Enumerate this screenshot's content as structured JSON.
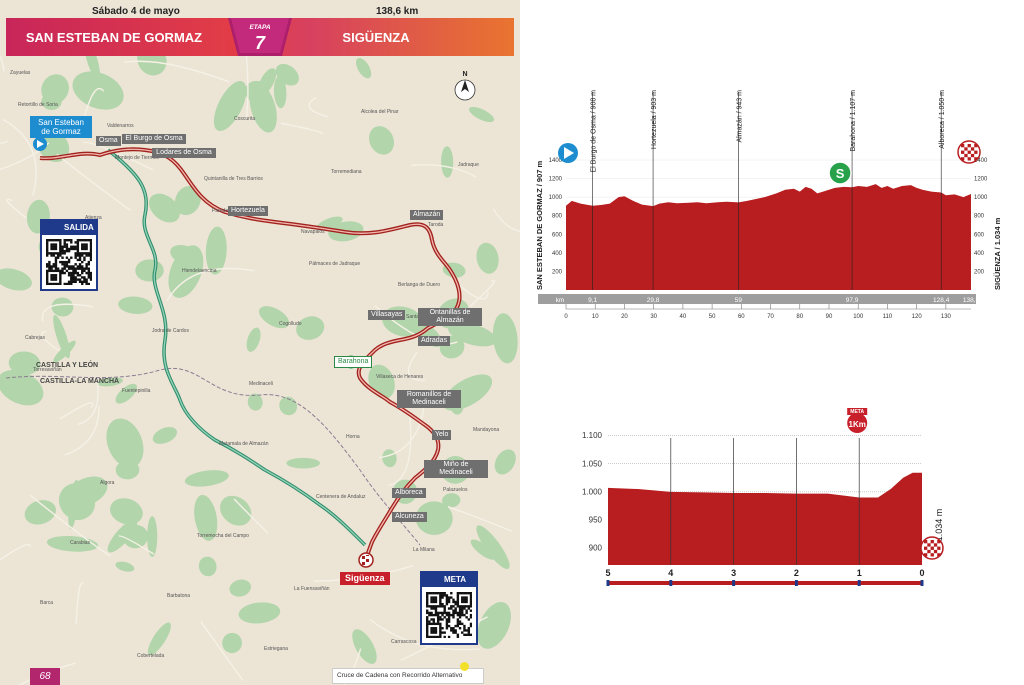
{
  "header": {
    "date": "Sábado 4 de mayo",
    "distance": "138,6 km",
    "start_city": "SAN ESTEBAN DE GORMAZ",
    "stage_label": "ETAPA",
    "stage_number": "7",
    "end_city": "SIGÜENZA"
  },
  "map": {
    "start_label": "San Esteban de Gormaz",
    "finish_label": "Sigüenza",
    "sprint_label": "Barahona",
    "salida_label": "SALIDA",
    "meta_label": "META",
    "page_number": "68",
    "legend": "Cruce de Cadena con Recorrido Alternativo",
    "route_tags": [
      {
        "name": "Osma"
      },
      {
        "name": "El Burgo de Osma"
      },
      {
        "name": "Lodares de Osma"
      },
      {
        "name": "Hortezuela"
      },
      {
        "name": "Almazán"
      },
      {
        "name": "Villasayas"
      },
      {
        "name": "Ontanillas de Almazán"
      },
      {
        "name": "Adradas"
      },
      {
        "name": "Romanillos de Medinaceli"
      },
      {
        "name": "Yelo"
      },
      {
        "name": "Miño de Medinaceli"
      },
      {
        "name": "Alboreca"
      },
      {
        "name": "Alcuneza"
      }
    ],
    "regions": [
      "CASTILLA Y LEÓN",
      "CASTILLA-LA MANCHA"
    ],
    "towns": [
      "Zayuelas",
      "Valdenarros",
      "Quintanilla de Tres Barrios",
      "Navapalos",
      "Berlanga de Duero",
      "Cabrejas",
      "Fuentepinilla",
      "Matamala de Almazán",
      "Centenera de Andaluz",
      "La Milana",
      "Barca",
      "Cobertelada",
      "Coscurita",
      "Torremediana",
      "Taroda",
      "Pinilla del Olmo",
      "Jodra de Cardos",
      "Medinaceli",
      "Horna",
      "Palazuelos",
      "Carabias",
      "Barbatona",
      "Estriegana",
      "Alcolea del Pinar",
      "Jadraque",
      "Atienza",
      "Hiendelaencina",
      "Cogolludo",
      "Villaseca de Henares",
      "Mandayona",
      "Algora",
      "Torremocha del Campo",
      "La Fuensaviñán",
      "Carrascosa",
      "Retortillo de Soria",
      "Montejo de Tiermes",
      "Paredes de Sigüenza",
      "Pálmaces de Jadraque",
      "Santamera",
      "Torresaviñán"
    ]
  },
  "profile": {
    "start_vertical": "SAN ESTEBAN DE GORMAZ / 907 m",
    "end_vertical": "SIGÜENZA / 1.034 m",
    "km_label": "km",
    "y_ticks": [
      "1400",
      "1200",
      "1000",
      "800",
      "600",
      "400",
      "200"
    ],
    "y_ticks_right": [
      "1400",
      "1200",
      "1000",
      "800",
      "600",
      "400",
      "200"
    ],
    "x_ticks": [
      "0",
      "10",
      "20",
      "30",
      "40",
      "50",
      "60",
      "70",
      "80",
      "90",
      "100",
      "110",
      "120",
      "130"
    ],
    "points": [
      {
        "label": "El Burgo de Osma / 908 m",
        "km_label": "9,1",
        "km": 9.1
      },
      {
        "label": "Hortezuela / 903 m",
        "km_label": "29,8",
        "km": 29.8
      },
      {
        "label": "Almazán / 943 m",
        "km_label": "59",
        "km": 59
      },
      {
        "label": "Barahona / 1.107 m",
        "km_label": "97,9",
        "km": 97.9
      },
      {
        "label": "Alboreca / 1.050 m",
        "km_label": "128,4",
        "km": 128.4
      },
      {
        "label": "",
        "km_label": "138,6",
        "km": 138.6
      }
    ],
    "sprint_icon_text": "S"
  },
  "final_km": {
    "y_ticks": [
      "1.100",
      "1.050",
      "1.000",
      "950",
      "900"
    ],
    "x_ticks": [
      "5",
      "4",
      "3",
      "2",
      "1",
      "0"
    ],
    "altitude_label": "1.034 m",
    "meta_text": "META",
    "one_km_text": "1Km"
  },
  "chart_data": [
    {
      "type": "area",
      "title": "",
      "xlabel": "km",
      "ylabel": "",
      "xlim": [
        0,
        138.6
      ],
      "ylim": [
        0,
        1400
      ],
      "series": [
        {
          "x": [
            0,
            2,
            5,
            9.1,
            12,
            15,
            18,
            20,
            23,
            26,
            29.8,
            32,
            35,
            38,
            42,
            45,
            48,
            52,
            55,
            59,
            62,
            65,
            68,
            72,
            75,
            78,
            80,
            82,
            84,
            86,
            88,
            90,
            92,
            95,
            97.9,
            100,
            103,
            106,
            108,
            110,
            112,
            115,
            118,
            120,
            122,
            125,
            128.4,
            130,
            133,
            136,
            138.6
          ],
          "y": [
            907,
            960,
            930,
            908,
            915,
            930,
            1000,
            1010,
            960,
            920,
            903,
            930,
            945,
            935,
            940,
            945,
            935,
            945,
            950,
            943,
            960,
            980,
            1000,
            1040,
            1080,
            1090,
            1060,
            1110,
            1090,
            1040,
            1060,
            1080,
            1100,
            1110,
            1107,
            1120,
            1110,
            1140,
            1100,
            1120,
            1090,
            1120,
            1130,
            1100,
            1080,
            1060,
            1050,
            1020,
            1030,
            1000,
            1034
          ]
        }
      ]
    },
    {
      "type": "area",
      "title": "",
      "xlabel": "",
      "ylabel": "",
      "xlim": [
        5,
        0
      ],
      "ylim": [
        870,
        1110
      ],
      "series": [
        {
          "x": [
            5,
            4.5,
            4,
            3.5,
            3,
            2.5,
            2,
            1.5,
            1,
            0.9,
            0.7,
            0.5,
            0.3,
            0.15,
            0
          ],
          "y": [
            1007,
            1005,
            1000,
            999,
            998,
            998,
            997,
            997,
            990,
            990,
            990,
            1005,
            1025,
            1034,
            1034
          ]
        }
      ]
    }
  ]
}
